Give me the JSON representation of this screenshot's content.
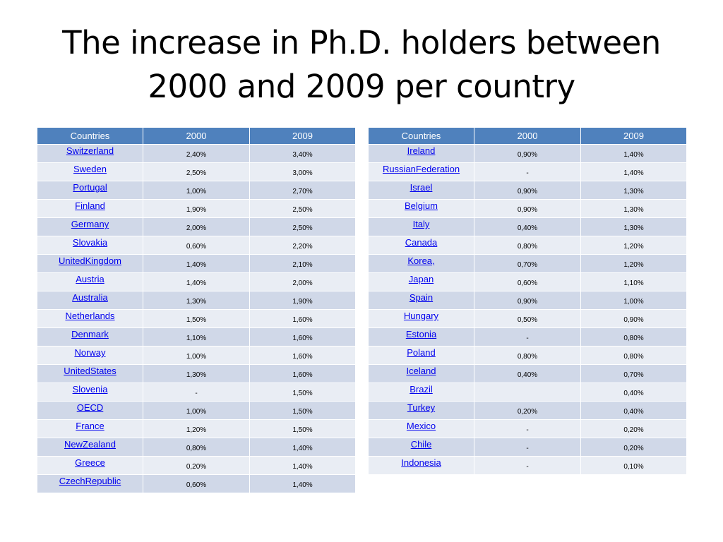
{
  "title": {
    "line1": "The increase in Ph.D. holders between",
    "line2": "2000 and 2009 per country"
  },
  "columns": [
    "Countries",
    "2000",
    "2009"
  ],
  "table_left": [
    {
      "country": "Switzerland",
      "y2000": "2,40%",
      "y2009": "3,40%"
    },
    {
      "country": "Sweden",
      "y2000": "2,50%",
      "y2009": "3,00%"
    },
    {
      "country": "Portugal",
      "y2000": "1,00%",
      "y2009": "2,70%"
    },
    {
      "country": "Finland",
      "y2000": "1,90%",
      "y2009": "2,50%"
    },
    {
      "country": "Germany",
      "y2000": "2,00%",
      "y2009": "2,50%"
    },
    {
      "country": "Slovakia",
      "y2000": "0,60%",
      "y2009": "2,20%"
    },
    {
      "country": "UnitedKingdom",
      "y2000": "1,40%",
      "y2009": "2,10%"
    },
    {
      "country": "Austria",
      "y2000": "1,40%",
      "y2009": "2,00%"
    },
    {
      "country": "Australia",
      "y2000": "1,30%",
      "y2009": "1,90%"
    },
    {
      "country": "Netherlands",
      "y2000": "1,50%",
      "y2009": "1,60%"
    },
    {
      "country": "Denmark",
      "y2000": "1,10%",
      "y2009": "1,60%"
    },
    {
      "country": "Norway",
      "y2000": "1,00%",
      "y2009": "1,60%"
    },
    {
      "country": "UnitedStates",
      "y2000": "1,30%",
      "y2009": "1,60%"
    },
    {
      "country": "Slovenia",
      "y2000": "-",
      "y2009": "1,50%"
    },
    {
      "country": "OECD",
      "y2000": "1,00%",
      "y2009": "1,50%"
    },
    {
      "country": "France",
      "y2000": "1,20%",
      "y2009": "1,50%"
    },
    {
      "country": "NewZealand",
      "y2000": "0,80%",
      "y2009": "1,40%"
    },
    {
      "country": "Greece",
      "y2000": "0,20%",
      "y2009": "1,40%"
    },
    {
      "country": "CzechRepublic",
      "y2000": "0,60%",
      "y2009": "1,40%"
    }
  ],
  "table_right": [
    {
      "country": "Ireland",
      "y2000": "0,90%",
      "y2009": "1,40%"
    },
    {
      "country": "RussianFederation",
      "y2000": "-",
      "y2009": "1,40%"
    },
    {
      "country": "Israel",
      "y2000": "0,90%",
      "y2009": "1,30%"
    },
    {
      "country": "Belgium",
      "y2000": "0,90%",
      "y2009": "1,30%"
    },
    {
      "country": "Italy",
      "y2000": "0,40%",
      "y2009": "1,30%"
    },
    {
      "country": "Canada",
      "y2000": "0,80%",
      "y2009": "1,20%"
    },
    {
      "country": "Korea,",
      "y2000": "0,70%",
      "y2009": "1,20%"
    },
    {
      "country": "Japan",
      "y2000": "0,60%",
      "y2009": "1,10%"
    },
    {
      "country": "Spain",
      "y2000": "0,90%",
      "y2009": "1,00%"
    },
    {
      "country": "Hungary",
      "y2000": "0,50%",
      "y2009": "0,90%"
    },
    {
      "country": "Estonia",
      "y2000": "-",
      "y2009": "0,80%"
    },
    {
      "country": "Poland",
      "y2000": "0,80%",
      "y2009": "0,80%"
    },
    {
      "country": "Iceland",
      "y2000": "0,40%",
      "y2009": "0,70%"
    },
    {
      "country": "Brazil",
      "y2000": "",
      "y2009": "0,40%"
    },
    {
      "country": "Turkey",
      "y2000": "0,20%",
      "y2009": "0,40%"
    },
    {
      "country": "Mexico",
      "y2000": "-",
      "y2009": "0,20%"
    },
    {
      "country": "Chile",
      "y2000": "-",
      "y2009": "0,20%"
    },
    {
      "country": "Indonesia",
      "y2000": "-",
      "y2009": "0,10%"
    }
  ],
  "colors": {
    "header_bg": "#4f81bd",
    "row_odd": "#d0d8e8",
    "row_even": "#e9edf4",
    "link": "#0000ee"
  }
}
